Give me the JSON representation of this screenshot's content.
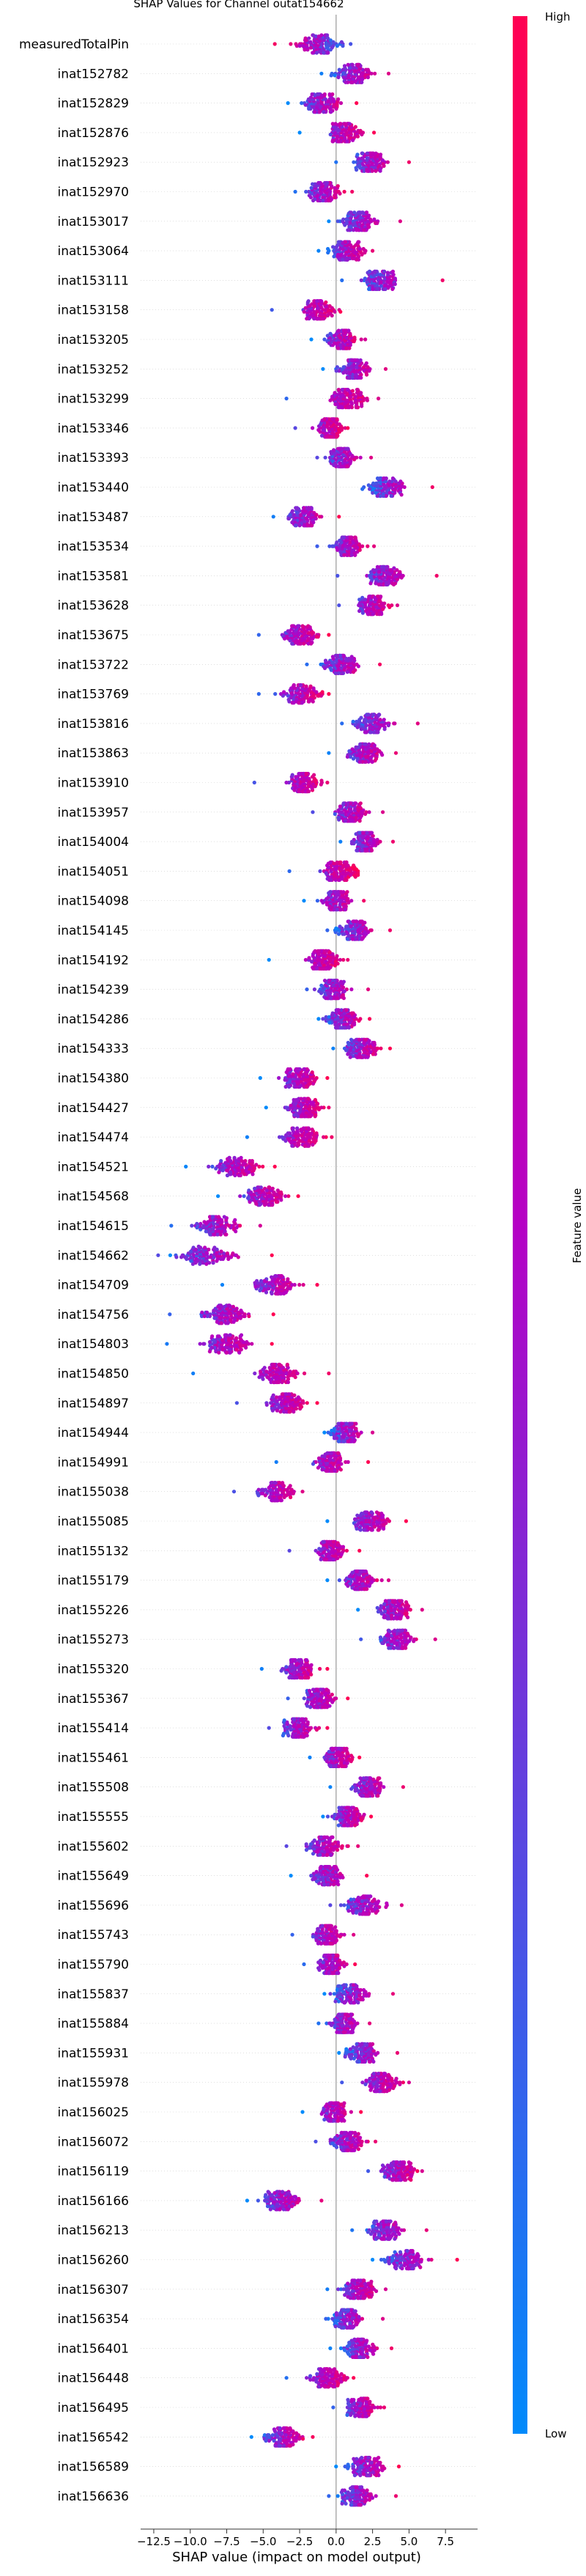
{
  "chart_data": {
    "type": "scatter",
    "subtype": "shap-beeswarm",
    "title": "SHAP Values for Channel outat154662",
    "xlabel": "SHAP value (impact on model output)",
    "xlim": [
      -13.2,
      9.5
    ],
    "xticks": [
      -12.5,
      -10.0,
      -7.5,
      -5.0,
      -2.5,
      0.0,
      2.5,
      5.0,
      7.5
    ],
    "xtick_labels": [
      "−12.5",
      "−10.0",
      "−7.5",
      "−5.0",
      "−2.5",
      "0.0",
      "2.5",
      "5.0",
      "7.5"
    ],
    "colorbar": {
      "label": "Feature value",
      "high_label": "High",
      "low_label": "Low",
      "low_color": "#008afb",
      "mid_color": "#b500c5",
      "high_color": "#ff0052"
    },
    "grid": false,
    "features": [
      {
        "name": "measuredTotalPin",
        "center": -1.2,
        "spread": 1.6,
        "min": -4.2,
        "max": 1.0,
        "trend": -1
      },
      {
        "name": "inat152782",
        "center": 1.2,
        "spread": 1.3,
        "min": -1.0,
        "max": 3.6,
        "trend": 1
      },
      {
        "name": "inat152829",
        "center": -1.0,
        "spread": 1.2,
        "min": -3.3,
        "max": 1.4,
        "trend": 1
      },
      {
        "name": "inat152876",
        "center": 0.6,
        "spread": 1.2,
        "min": -2.5,
        "max": 2.6,
        "trend": 1
      },
      {
        "name": "inat152923",
        "center": 2.2,
        "spread": 1.2,
        "min": 0.0,
        "max": 5.0,
        "trend": 1
      },
      {
        "name": "inat152970",
        "center": -0.8,
        "spread": 1.2,
        "min": -2.8,
        "max": 1.1,
        "trend": 1
      },
      {
        "name": "inat153017",
        "center": 1.5,
        "spread": 1.3,
        "min": -0.5,
        "max": 4.4,
        "trend": 1
      },
      {
        "name": "inat153064",
        "center": 0.8,
        "spread": 1.2,
        "min": -1.2,
        "max": 2.5,
        "trend": 1
      },
      {
        "name": "inat153111",
        "center": 3.0,
        "spread": 1.4,
        "min": 0.4,
        "max": 7.3,
        "trend": 1
      },
      {
        "name": "inat153158",
        "center": -1.2,
        "spread": 1.2,
        "min": -4.4,
        "max": 0.3,
        "trend": 1
      },
      {
        "name": "inat153205",
        "center": 0.4,
        "spread": 1.0,
        "min": -1.7,
        "max": 2.0,
        "trend": 1
      },
      {
        "name": "inat153252",
        "center": 1.2,
        "spread": 1.2,
        "min": -0.9,
        "max": 3.4,
        "trend": 1
      },
      {
        "name": "inat153299",
        "center": 0.9,
        "spread": 1.3,
        "min": -3.4,
        "max": 2.9,
        "trend": 1
      },
      {
        "name": "inat153346",
        "center": -0.5,
        "spread": 1.0,
        "min": -2.8,
        "max": 0.8,
        "trend": 1
      },
      {
        "name": "inat153393",
        "center": 0.4,
        "spread": 1.0,
        "min": -1.3,
        "max": 2.4,
        "trend": 1
      },
      {
        "name": "inat153440",
        "center": 3.5,
        "spread": 1.3,
        "min": 1.8,
        "max": 6.6,
        "trend": 1
      },
      {
        "name": "inat153487",
        "center": -2.2,
        "spread": 1.2,
        "min": -4.3,
        "max": 0.2,
        "trend": 1
      },
      {
        "name": "inat153534",
        "center": 0.8,
        "spread": 1.1,
        "min": -1.3,
        "max": 2.6,
        "trend": 1
      },
      {
        "name": "inat153581",
        "center": 3.4,
        "spread": 1.3,
        "min": 0.1,
        "max": 6.9,
        "trend": 1
      },
      {
        "name": "inat153628",
        "center": 2.5,
        "spread": 1.1,
        "min": 0.2,
        "max": 4.2,
        "trend": 1
      },
      {
        "name": "inat153675",
        "center": -2.4,
        "spread": 1.3,
        "min": -5.3,
        "max": -0.5,
        "trend": 1
      },
      {
        "name": "inat153722",
        "center": 0.3,
        "spread": 1.4,
        "min": -2.0,
        "max": 3.0,
        "trend": 1
      },
      {
        "name": "inat153769",
        "center": -2.4,
        "spread": 1.3,
        "min": -5.3,
        "max": -0.5,
        "trend": 1
      },
      {
        "name": "inat153816",
        "center": 2.4,
        "spread": 1.2,
        "min": 0.4,
        "max": 5.6,
        "trend": 1
      },
      {
        "name": "inat153863",
        "center": 2.0,
        "spread": 1.2,
        "min": -0.5,
        "max": 4.1,
        "trend": 1
      },
      {
        "name": "inat153910",
        "center": -2.2,
        "spread": 1.0,
        "min": -5.6,
        "max": -0.6,
        "trend": 1
      },
      {
        "name": "inat153957",
        "center": 1.0,
        "spread": 1.2,
        "min": -1.6,
        "max": 3.2,
        "trend": 1
      },
      {
        "name": "inat154004",
        "center": 2.0,
        "spread": 1.0,
        "min": 0.3,
        "max": 3.9,
        "trend": 1
      },
      {
        "name": "inat154051",
        "center": 0.3,
        "spread": 1.2,
        "min": -3.2,
        "max": 1.5,
        "trend": 1
      },
      {
        "name": "inat154098",
        "center": 0.1,
        "spread": 1.1,
        "min": -2.2,
        "max": 1.9,
        "trend": 1
      },
      {
        "name": "inat154145",
        "center": 1.2,
        "spread": 1.2,
        "min": -0.6,
        "max": 3.7,
        "trend": 1
      },
      {
        "name": "inat154192",
        "center": -0.8,
        "spread": 1.2,
        "min": -4.6,
        "max": 0.8,
        "trend": 1
      },
      {
        "name": "inat154239",
        "center": -0.3,
        "spread": 1.1,
        "min": -2.0,
        "max": 2.2,
        "trend": 1
      },
      {
        "name": "inat154286",
        "center": 0.4,
        "spread": 1.1,
        "min": -1.2,
        "max": 2.3,
        "trend": 1
      },
      {
        "name": "inat154333",
        "center": 1.8,
        "spread": 1.2,
        "min": -0.2,
        "max": 3.7,
        "trend": 1
      },
      {
        "name": "inat154380",
        "center": -2.5,
        "spread": 1.2,
        "min": -5.2,
        "max": -0.6,
        "trend": 1
      },
      {
        "name": "inat154427",
        "center": -2.2,
        "spread": 1.3,
        "min": -4.8,
        "max": -0.5,
        "trend": 1
      },
      {
        "name": "inat154474",
        "center": -2.3,
        "spread": 1.3,
        "min": -6.1,
        "max": -0.3,
        "trend": 1
      },
      {
        "name": "inat154521",
        "center": -6.8,
        "spread": 1.6,
        "min": -10.3,
        "max": -4.2,
        "trend": 1
      },
      {
        "name": "inat154568",
        "center": -4.8,
        "spread": 1.6,
        "min": -8.1,
        "max": -2.6,
        "trend": 1
      },
      {
        "name": "inat154615",
        "center": -8.2,
        "spread": 1.6,
        "min": -11.3,
        "max": -5.2,
        "trend": 1
      },
      {
        "name": "inat154662",
        "center": -9.0,
        "spread": 2.0,
        "min": -12.2,
        "max": -4.4,
        "trend": 1
      },
      {
        "name": "inat154709",
        "center": -4.2,
        "spread": 1.6,
        "min": -7.8,
        "max": -1.3,
        "trend": 1
      },
      {
        "name": "inat154756",
        "center": -7.6,
        "spread": 1.6,
        "min": -11.4,
        "max": -4.3,
        "trend": 1
      },
      {
        "name": "inat154803",
        "center": -7.5,
        "spread": 1.6,
        "min": -11.6,
        "max": -4.4,
        "trend": 1
      },
      {
        "name": "inat154850",
        "center": -4.0,
        "spread": 1.6,
        "min": -9.8,
        "max": -0.5,
        "trend": 1
      },
      {
        "name": "inat154897",
        "center": -3.4,
        "spread": 1.3,
        "min": -6.8,
        "max": -1.3,
        "trend": 1
      },
      {
        "name": "inat154944",
        "center": 0.7,
        "spread": 1.1,
        "min": -0.8,
        "max": 2.5,
        "trend": 1
      },
      {
        "name": "inat154991",
        "center": -0.3,
        "spread": 1.1,
        "min": -4.1,
        "max": 2.2,
        "trend": 1
      },
      {
        "name": "inat155038",
        "center": -4.1,
        "spread": 1.3,
        "min": -7.0,
        "max": -2.3,
        "trend": 1
      },
      {
        "name": "inat155085",
        "center": 2.4,
        "spread": 1.3,
        "min": -0.6,
        "max": 4.8,
        "trend": 1
      },
      {
        "name": "inat155132",
        "center": -0.5,
        "spread": 1.1,
        "min": -3.2,
        "max": 1.6,
        "trend": 1
      },
      {
        "name": "inat155179",
        "center": 1.6,
        "spread": 1.2,
        "min": -0.6,
        "max": 3.6,
        "trend": 1
      },
      {
        "name": "inat155226",
        "center": 4.0,
        "spread": 1.2,
        "min": 1.5,
        "max": 5.9,
        "trend": 1
      },
      {
        "name": "inat155273",
        "center": 4.2,
        "spread": 1.3,
        "min": 1.7,
        "max": 6.8,
        "trend": 1
      },
      {
        "name": "inat155320",
        "center": -2.6,
        "spread": 1.2,
        "min": -5.1,
        "max": -0.6,
        "trend": 1
      },
      {
        "name": "inat155367",
        "center": -1.1,
        "spread": 1.1,
        "min": -3.3,
        "max": 0.8,
        "trend": 1
      },
      {
        "name": "inat155414",
        "center": -2.6,
        "spread": 1.2,
        "min": -4.6,
        "max": -0.6,
        "trend": 1
      },
      {
        "name": "inat155461",
        "center": 0.2,
        "spread": 1.0,
        "min": -1.8,
        "max": 1.6,
        "trend": 1
      },
      {
        "name": "inat155508",
        "center": 2.2,
        "spread": 1.2,
        "min": -0.4,
        "max": 4.6,
        "trend": 1
      },
      {
        "name": "inat155555",
        "center": 0.8,
        "spread": 1.0,
        "min": -0.9,
        "max": 2.4,
        "trend": 1
      },
      {
        "name": "inat155602",
        "center": -0.8,
        "spread": 1.2,
        "min": -3.4,
        "max": 1.5,
        "trend": 1
      },
      {
        "name": "inat155649",
        "center": -0.6,
        "spread": 1.1,
        "min": -3.1,
        "max": 2.1,
        "trend": 1
      },
      {
        "name": "inat155696",
        "center": 1.9,
        "spread": 1.3,
        "min": -0.4,
        "max": 4.5,
        "trend": 1
      },
      {
        "name": "inat155743",
        "center": -0.6,
        "spread": 1.1,
        "min": -3.0,
        "max": 1.2,
        "trend": 1
      },
      {
        "name": "inat155790",
        "center": -0.3,
        "spread": 1.0,
        "min": -2.2,
        "max": 1.3,
        "trend": 1
      },
      {
        "name": "inat155837",
        "center": 1.0,
        "spread": 1.2,
        "min": -0.8,
        "max": 3.9,
        "trend": 1
      },
      {
        "name": "inat155884",
        "center": 0.6,
        "spread": 1.0,
        "min": -1.2,
        "max": 2.3,
        "trend": 1
      },
      {
        "name": "inat155931",
        "center": 1.8,
        "spread": 1.1,
        "min": 0.2,
        "max": 4.2,
        "trend": 1
      },
      {
        "name": "inat155978",
        "center": 3.2,
        "spread": 1.3,
        "min": 0.4,
        "max": 5.0,
        "trend": 1
      },
      {
        "name": "inat156025",
        "center": -0.2,
        "spread": 1.0,
        "min": -2.3,
        "max": 1.7,
        "trend": 1
      },
      {
        "name": "inat156072",
        "center": 0.8,
        "spread": 1.2,
        "min": -1.4,
        "max": 2.7,
        "trend": 1
      },
      {
        "name": "inat156119",
        "center": 4.3,
        "spread": 1.2,
        "min": 2.2,
        "max": 5.9,
        "trend": 1
      },
      {
        "name": "inat156166",
        "center": -3.8,
        "spread": 1.3,
        "min": -6.1,
        "max": -1.0,
        "trend": 1
      },
      {
        "name": "inat156213",
        "center": 3.3,
        "spread": 1.3,
        "min": 1.1,
        "max": 6.2,
        "trend": 1
      },
      {
        "name": "inat156260",
        "center": 4.8,
        "spread": 1.4,
        "min": 2.5,
        "max": 8.3,
        "trend": 1
      },
      {
        "name": "inat156307",
        "center": 1.6,
        "spread": 1.2,
        "min": -0.6,
        "max": 3.4,
        "trend": 1
      },
      {
        "name": "inat156354",
        "center": 0.8,
        "spread": 1.2,
        "min": -0.7,
        "max": 3.2,
        "trend": 1
      },
      {
        "name": "inat156401",
        "center": 1.6,
        "spread": 1.2,
        "min": -0.4,
        "max": 3.8,
        "trend": 1
      },
      {
        "name": "inat156448",
        "center": -0.6,
        "spread": 1.2,
        "min": -3.4,
        "max": 1.2,
        "trend": 1
      },
      {
        "name": "inat156495",
        "center": 1.7,
        "spread": 1.1,
        "min": -0.2,
        "max": 3.3,
        "trend": 1
      },
      {
        "name": "inat156542",
        "center": -3.6,
        "spread": 1.3,
        "min": -5.8,
        "max": -1.6,
        "trend": 1
      },
      {
        "name": "inat156589",
        "center": 2.1,
        "spread": 1.3,
        "min": 0.0,
        "max": 4.3,
        "trend": 1
      },
      {
        "name": "inat156636",
        "center": 1.4,
        "spread": 1.3,
        "min": -0.5,
        "max": 4.1,
        "trend": 1
      }
    ]
  }
}
